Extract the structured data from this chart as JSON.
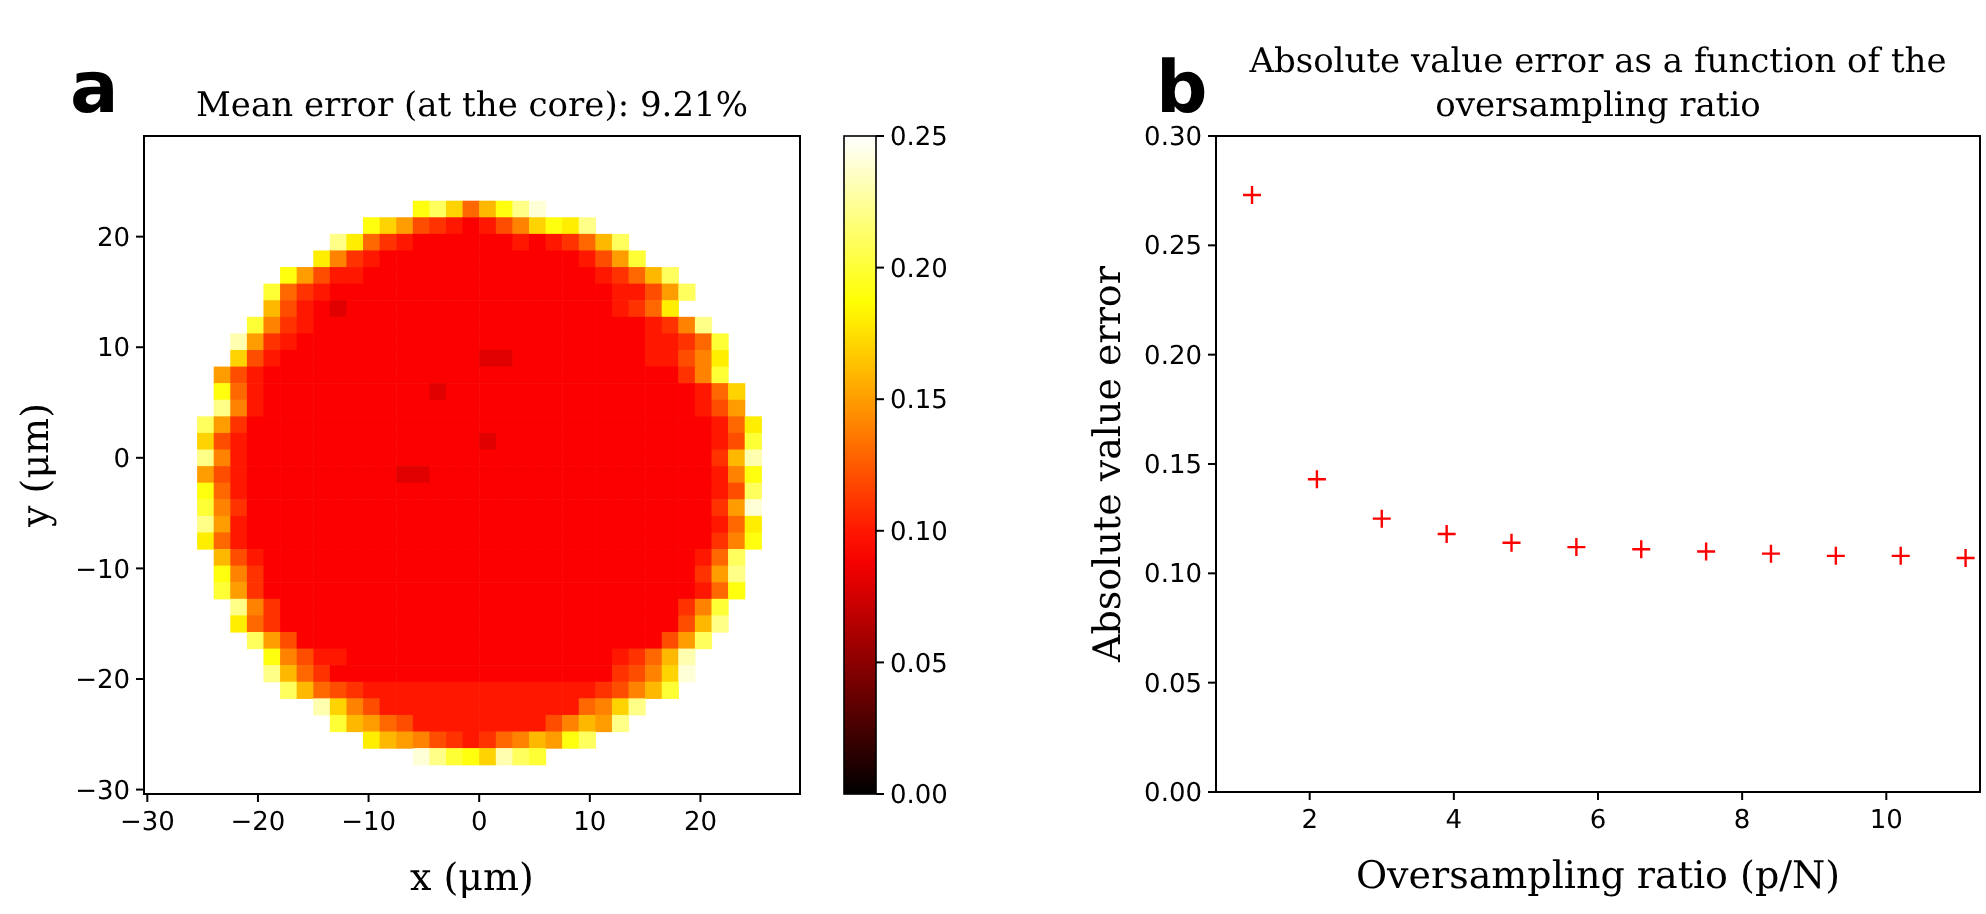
{
  "chart_data": [
    {
      "type": "heatmap",
      "title": "Mean error (at the core): 9.21%",
      "xlabel": "x (μm)",
      "ylabel": "y (μm)",
      "annotations": [
        "a"
      ],
      "xlim": [
        -30.3,
        29.0
      ],
      "ylim": [
        -30.4,
        29.1
      ],
      "xticks": [
        {
          "value": -30,
          "label": "−30"
        },
        {
          "value": -20,
          "label": "−20"
        },
        {
          "value": -10,
          "label": "−10"
        },
        0,
        10,
        20
      ],
      "yticks": [
        {
          "value": -30,
          "label": "−30"
        },
        {
          "value": -20,
          "label": "−20"
        },
        {
          "value": -10,
          "label": "−10"
        },
        0,
        10,
        20
      ],
      "clim": [
        0,
        0.25
      ],
      "cticks": [
        {
          "value": 0,
          "label": "0.00"
        },
        0.05,
        {
          "value": 0.1,
          "label": "0.10"
        },
        0.15,
        {
          "value": 0.2,
          "label": "0.20"
        },
        0.25
      ],
      "x": [
        -24.75,
        -23.25,
        -21.75,
        -20.25,
        -18.75,
        -17.25,
        -15.75,
        -14.25,
        -12.75,
        -11.25,
        -9.75,
        -8.25,
        -6.75,
        -5.25,
        -3.75,
        -2.25,
        -0.75,
        0.75,
        2.25,
        3.75,
        5.25,
        6.75,
        8.25,
        9.75,
        11.25,
        12.75,
        14.25,
        15.75,
        17.25,
        18.75,
        20.25,
        21.75,
        23.25,
        24.75
      ],
      "y": [
        22.5,
        21,
        19.5,
        18,
        16.5,
        15,
        13.5,
        12,
        10.5,
        9,
        7.5,
        6,
        4.5,
        3,
        1.5,
        0,
        -1.5,
        -3,
        -4.5,
        -6,
        -7.5,
        -9,
        -10.5,
        -12,
        -13.5,
        -15,
        -16.5,
        -18,
        -19.5,
        -21,
        -22.5,
        -24,
        -25.5,
        -27
      ],
      "cells": [
        [
          null,
          null,
          null,
          null,
          null,
          null,
          null,
          null,
          null,
          null,
          null,
          null,
          null,
          0.19,
          0.21,
          0.17,
          0.13,
          0.16,
          0.19,
          0.22,
          0.24,
          null,
          null,
          null,
          null,
          null,
          null,
          null,
          null,
          null,
          null,
          null,
          null,
          null
        ],
        [
          null,
          null,
          null,
          null,
          null,
          null,
          null,
          null,
          null,
          null,
          0.19,
          0.17,
          0.15,
          0.12,
          0.11,
          0.1,
          0.09,
          0.1,
          0.12,
          0.14,
          0.17,
          0.19,
          0.18,
          0.22,
          null,
          null,
          null,
          null,
          null,
          null,
          null,
          null,
          null,
          null
        ],
        [
          null,
          null,
          null,
          null,
          null,
          null,
          null,
          null,
          0.22,
          0.18,
          0.13,
          0.11,
          0.1,
          0.09,
          0.09,
          0.09,
          0.09,
          0.09,
          0.09,
          0.1,
          0.09,
          0.1,
          0.11,
          0.13,
          0.16,
          0.21,
          null,
          null,
          null,
          null,
          null,
          null,
          null,
          null
        ],
        [
          null,
          null,
          null,
          null,
          null,
          null,
          null,
          0.18,
          0.14,
          0.11,
          0.1,
          0.09,
          0.09,
          0.09,
          0.09,
          0.09,
          0.09,
          0.09,
          0.09,
          0.09,
          0.09,
          0.09,
          0.09,
          0.1,
          0.12,
          0.15,
          0.2,
          null,
          null,
          null,
          null,
          null,
          null,
          null
        ],
        [
          null,
          null,
          null,
          null,
          null,
          0.19,
          0.15,
          0.12,
          0.1,
          0.1,
          0.09,
          0.09,
          0.09,
          0.09,
          0.09,
          0.09,
          0.09,
          0.09,
          0.09,
          0.09,
          0.09,
          0.09,
          0.09,
          0.09,
          0.1,
          0.11,
          0.13,
          0.16,
          0.21,
          null,
          null,
          null,
          null,
          null
        ],
        [
          null,
          null,
          null,
          null,
          0.2,
          0.13,
          0.11,
          0.1,
          0.09,
          0.09,
          0.09,
          0.09,
          0.09,
          0.09,
          0.09,
          0.09,
          0.09,
          0.09,
          0.09,
          0.09,
          0.09,
          0.09,
          0.09,
          0.09,
          0.09,
          0.1,
          0.1,
          0.12,
          0.15,
          0.21,
          null,
          null,
          null,
          null
        ],
        [
          null,
          null,
          null,
          null,
          0.16,
          0.12,
          0.1,
          0.09,
          0.08,
          0.09,
          0.09,
          0.09,
          0.09,
          0.09,
          0.09,
          0.09,
          0.09,
          0.09,
          0.09,
          0.09,
          0.09,
          0.09,
          0.09,
          0.09,
          0.09,
          0.1,
          0.11,
          0.13,
          0.18,
          null,
          null,
          null,
          null,
          null
        ],
        [
          null,
          null,
          null,
          0.2,
          0.14,
          0.11,
          0.1,
          0.09,
          0.09,
          0.09,
          0.09,
          0.09,
          0.09,
          0.09,
          0.09,
          0.09,
          0.09,
          0.09,
          0.09,
          0.09,
          0.09,
          0.09,
          0.09,
          0.09,
          0.09,
          0.09,
          0.09,
          0.1,
          0.11,
          0.14,
          0.22,
          null,
          null,
          null
        ],
        [
          null,
          null,
          0.23,
          0.15,
          0.11,
          0.1,
          0.09,
          0.09,
          0.09,
          0.09,
          0.09,
          0.09,
          0.09,
          0.09,
          0.09,
          0.09,
          0.09,
          0.09,
          0.09,
          0.09,
          0.09,
          0.09,
          0.09,
          0.09,
          0.09,
          0.09,
          0.09,
          0.1,
          0.1,
          0.11,
          0.13,
          0.2,
          null,
          null
        ],
        [
          null,
          null,
          0.17,
          0.12,
          0.1,
          0.09,
          0.09,
          0.09,
          0.09,
          0.09,
          0.09,
          0.09,
          0.09,
          0.09,
          0.09,
          0.09,
          0.09,
          0.08,
          0.08,
          0.09,
          0.09,
          0.09,
          0.09,
          0.09,
          0.09,
          0.09,
          0.09,
          0.1,
          0.1,
          0.12,
          0.14,
          0.18,
          null,
          null
        ],
        [
          null,
          0.15,
          0.12,
          0.1,
          0.09,
          0.09,
          0.09,
          0.09,
          0.09,
          0.09,
          0.09,
          0.09,
          0.09,
          0.09,
          0.09,
          0.09,
          0.09,
          0.09,
          0.09,
          0.09,
          0.09,
          0.09,
          0.09,
          0.09,
          0.09,
          0.09,
          0.09,
          0.09,
          0.09,
          0.11,
          0.14,
          0.2,
          null,
          null
        ],
        [
          null,
          0.19,
          0.13,
          0.1,
          0.09,
          0.09,
          0.09,
          0.09,
          0.09,
          0.09,
          0.09,
          0.09,
          0.09,
          0.09,
          0.08,
          0.09,
          0.09,
          0.09,
          0.09,
          0.09,
          0.09,
          0.09,
          0.09,
          0.09,
          0.09,
          0.09,
          0.09,
          0.09,
          0.09,
          0.09,
          0.1,
          0.13,
          0.17,
          null
        ],
        [
          null,
          0.22,
          0.14,
          0.1,
          0.09,
          0.09,
          0.09,
          0.09,
          0.09,
          0.09,
          0.09,
          0.09,
          0.09,
          0.09,
          0.09,
          0.09,
          0.09,
          0.09,
          0.09,
          0.09,
          0.09,
          0.09,
          0.09,
          0.09,
          0.09,
          0.09,
          0.09,
          0.09,
          0.09,
          0.09,
          0.1,
          0.12,
          0.15,
          null
        ],
        [
          0.21,
          0.15,
          0.11,
          0.09,
          0.09,
          0.09,
          0.09,
          0.09,
          0.09,
          0.09,
          0.09,
          0.09,
          0.09,
          0.09,
          0.09,
          0.09,
          0.09,
          0.09,
          0.09,
          0.09,
          0.09,
          0.09,
          0.09,
          0.09,
          0.09,
          0.09,
          0.09,
          0.09,
          0.09,
          0.09,
          0.09,
          0.1,
          0.13,
          0.18
        ],
        [
          0.17,
          0.12,
          0.1,
          0.09,
          0.09,
          0.09,
          0.09,
          0.09,
          0.09,
          0.09,
          0.09,
          0.09,
          0.09,
          0.09,
          0.09,
          0.09,
          0.09,
          0.08,
          0.09,
          0.09,
          0.09,
          0.09,
          0.09,
          0.09,
          0.09,
          0.09,
          0.09,
          0.09,
          0.09,
          0.09,
          0.09,
          0.1,
          0.12,
          0.2
        ],
        [
          0.22,
          0.14,
          0.1,
          0.09,
          0.09,
          0.09,
          0.09,
          0.09,
          0.09,
          0.09,
          0.09,
          0.09,
          0.09,
          0.09,
          0.09,
          0.09,
          0.09,
          0.09,
          0.09,
          0.09,
          0.09,
          0.09,
          0.09,
          0.09,
          0.09,
          0.09,
          0.09,
          0.09,
          0.09,
          0.09,
          0.09,
          0.11,
          0.16,
          0.23
        ],
        [
          0.15,
          0.12,
          0.1,
          0.09,
          0.09,
          0.09,
          0.09,
          0.09,
          0.09,
          0.09,
          0.09,
          0.09,
          0.08,
          0.08,
          0.09,
          0.09,
          0.09,
          0.09,
          0.09,
          0.09,
          0.09,
          0.09,
          0.09,
          0.09,
          0.09,
          0.09,
          0.09,
          0.09,
          0.09,
          0.09,
          0.09,
          0.1,
          0.14,
          0.19
        ],
        [
          0.19,
          0.13,
          0.1,
          0.09,
          0.09,
          0.09,
          0.09,
          0.09,
          0.09,
          0.09,
          0.09,
          0.09,
          0.09,
          0.09,
          0.09,
          0.09,
          0.09,
          0.09,
          0.09,
          0.09,
          0.09,
          0.09,
          0.09,
          0.09,
          0.09,
          0.09,
          0.09,
          0.09,
          0.09,
          0.09,
          0.09,
          0.1,
          0.12,
          0.21
        ],
        [
          0.2,
          0.14,
          0.11,
          0.09,
          0.09,
          0.09,
          0.09,
          0.09,
          0.09,
          0.09,
          0.09,
          0.09,
          0.09,
          0.09,
          0.09,
          0.09,
          0.09,
          0.09,
          0.09,
          0.09,
          0.09,
          0.09,
          0.09,
          0.09,
          0.09,
          0.09,
          0.09,
          0.09,
          0.09,
          0.09,
          0.09,
          0.11,
          0.15,
          0.24
        ],
        [
          0.22,
          0.15,
          0.1,
          0.09,
          0.09,
          0.09,
          0.09,
          0.09,
          0.09,
          0.09,
          0.09,
          0.09,
          0.09,
          0.09,
          0.09,
          0.09,
          0.09,
          0.09,
          0.09,
          0.09,
          0.09,
          0.09,
          0.09,
          0.09,
          0.09,
          0.09,
          0.09,
          0.09,
          0.09,
          0.09,
          0.09,
          0.1,
          0.13,
          0.18
        ],
        [
          0.18,
          0.13,
          0.1,
          0.09,
          0.09,
          0.09,
          0.09,
          0.09,
          0.09,
          0.09,
          0.09,
          0.09,
          0.09,
          0.09,
          0.09,
          0.09,
          0.09,
          0.09,
          0.09,
          0.09,
          0.09,
          0.09,
          0.09,
          0.09,
          0.09,
          0.09,
          0.09,
          0.09,
          0.09,
          0.09,
          0.09,
          0.11,
          0.14,
          0.19
        ],
        [
          null,
          0.16,
          0.12,
          0.1,
          0.09,
          0.09,
          0.09,
          0.09,
          0.09,
          0.09,
          0.09,
          0.09,
          0.09,
          0.09,
          0.09,
          0.09,
          0.09,
          0.09,
          0.09,
          0.09,
          0.09,
          0.09,
          0.09,
          0.09,
          0.09,
          0.09,
          0.09,
          0.09,
          0.09,
          0.09,
          0.1,
          0.13,
          0.21,
          null
        ],
        [
          null,
          0.19,
          0.14,
          0.11,
          0.09,
          0.09,
          0.09,
          0.09,
          0.09,
          0.09,
          0.09,
          0.09,
          0.09,
          0.09,
          0.09,
          0.09,
          0.09,
          0.09,
          0.09,
          0.09,
          0.09,
          0.09,
          0.09,
          0.09,
          0.09,
          0.09,
          0.09,
          0.09,
          0.09,
          0.09,
          0.11,
          0.15,
          0.22,
          null
        ],
        [
          null,
          0.2,
          0.15,
          0.11,
          0.09,
          0.09,
          0.09,
          0.09,
          0.09,
          0.09,
          0.09,
          0.09,
          0.09,
          0.09,
          0.09,
          0.09,
          0.09,
          0.09,
          0.09,
          0.09,
          0.09,
          0.09,
          0.09,
          0.09,
          0.09,
          0.09,
          0.09,
          0.09,
          0.09,
          0.09,
          0.1,
          0.13,
          0.19,
          null
        ],
        [
          null,
          null,
          0.22,
          0.14,
          0.11,
          0.09,
          0.09,
          0.09,
          0.09,
          0.09,
          0.09,
          0.09,
          0.09,
          0.09,
          0.09,
          0.09,
          0.09,
          0.09,
          0.09,
          0.09,
          0.09,
          0.09,
          0.09,
          0.09,
          0.09,
          0.09,
          0.09,
          0.09,
          0.09,
          0.11,
          0.14,
          0.2,
          null,
          null
        ],
        [
          null,
          null,
          0.18,
          0.13,
          0.11,
          0.09,
          0.09,
          0.09,
          0.09,
          0.09,
          0.09,
          0.09,
          0.09,
          0.09,
          0.09,
          0.09,
          0.09,
          0.09,
          0.09,
          0.09,
          0.09,
          0.09,
          0.09,
          0.09,
          0.09,
          0.09,
          0.09,
          0.09,
          0.09,
          0.12,
          0.16,
          0.22,
          null,
          null
        ],
        [
          null,
          null,
          null,
          0.21,
          0.15,
          0.12,
          0.09,
          0.09,
          0.09,
          0.09,
          0.09,
          0.09,
          0.09,
          0.09,
          0.09,
          0.09,
          0.09,
          0.09,
          0.09,
          0.09,
          0.09,
          0.09,
          0.09,
          0.09,
          0.09,
          0.09,
          0.09,
          0.09,
          0.12,
          0.15,
          0.21,
          null,
          null,
          null
        ],
        [
          null,
          null,
          null,
          null,
          0.19,
          0.14,
          0.12,
          0.1,
          0.1,
          0.09,
          0.09,
          0.09,
          0.09,
          0.09,
          0.09,
          0.09,
          0.09,
          0.09,
          0.09,
          0.09,
          0.09,
          0.09,
          0.09,
          0.09,
          0.09,
          0.1,
          0.11,
          0.13,
          0.16,
          0.23,
          null,
          null,
          null,
          null
        ],
        [
          null,
          null,
          null,
          null,
          0.22,
          0.16,
          0.13,
          0.11,
          0.09,
          0.09,
          0.09,
          0.09,
          0.09,
          0.09,
          0.09,
          0.09,
          0.09,
          0.09,
          0.09,
          0.09,
          0.09,
          0.09,
          0.09,
          0.09,
          0.09,
          0.11,
          0.12,
          0.14,
          0.17,
          0.24,
          null,
          null,
          null,
          null
        ],
        [
          null,
          null,
          null,
          null,
          null,
          0.21,
          0.16,
          0.13,
          0.12,
          0.11,
          0.1,
          0.1,
          0.1,
          0.1,
          0.1,
          0.1,
          0.1,
          0.1,
          0.1,
          0.1,
          0.1,
          0.1,
          0.1,
          0.1,
          0.11,
          0.12,
          0.14,
          0.16,
          0.2,
          null,
          null,
          null,
          null,
          null
        ],
        [
          null,
          null,
          null,
          null,
          null,
          null,
          null,
          0.23,
          0.17,
          0.14,
          0.12,
          0.1,
          0.1,
          0.1,
          0.1,
          0.1,
          0.1,
          0.1,
          0.1,
          0.1,
          0.1,
          0.1,
          0.1,
          0.13,
          0.14,
          0.17,
          0.22,
          null,
          null,
          null,
          null,
          null,
          null,
          null
        ],
        [
          null,
          null,
          null,
          null,
          null,
          null,
          null,
          null,
          0.2,
          0.16,
          0.15,
          0.13,
          0.12,
          0.1,
          0.1,
          0.1,
          0.1,
          0.1,
          0.1,
          0.1,
          0.1,
          0.12,
          0.14,
          0.16,
          0.15,
          0.22,
          null,
          null,
          null,
          null,
          null,
          null,
          null,
          null
        ],
        [
          null,
          null,
          null,
          null,
          null,
          null,
          null,
          null,
          null,
          null,
          0.18,
          0.16,
          0.15,
          0.14,
          0.12,
          0.11,
          0.1,
          0.11,
          0.13,
          0.14,
          0.16,
          0.15,
          0.19,
          0.21,
          null,
          null,
          null,
          null,
          null,
          null,
          null,
          null,
          null,
          null
        ],
        [
          null,
          null,
          null,
          null,
          null,
          null,
          null,
          null,
          null,
          null,
          null,
          null,
          null,
          0.24,
          0.22,
          0.2,
          0.19,
          0.17,
          0.23,
          0.21,
          0.2,
          null,
          null,
          null,
          null,
          null,
          null,
          null,
          null,
          null,
          null,
          null,
          null,
          null
        ]
      ]
    },
    {
      "type": "scatter",
      "title": "Absolute value error as a function of the oversampling ratio",
      "xlabel": "Oversampling ratio (p/N)",
      "ylabel": "Absolute value error",
      "annotations": [
        "b"
      ],
      "x": [
        1.2,
        2.1,
        3.0,
        3.9,
        4.8,
        5.7,
        6.6,
        7.5,
        8.4,
        9.3,
        10.2,
        11.1
      ],
      "series": [
        {
          "color": "#ff0000",
          "values": [
            0.273,
            0.143,
            0.125,
            0.118,
            0.114,
            0.112,
            0.111,
            0.11,
            0.109,
            0.108,
            0.108,
            0.107
          ]
        }
      ],
      "marker": "cross",
      "xlim": [
        0.7,
        11.3
      ],
      "ylim": [
        0,
        0.3
      ],
      "xticks": [
        2,
        4,
        6,
        8,
        10
      ],
      "yticks": [
        {
          "value": 0,
          "label": "0.00"
        },
        0.05,
        {
          "value": 0.1,
          "label": "0.10"
        },
        0.15,
        {
          "value": 0.2,
          "label": "0.20"
        },
        0.25,
        {
          "value": 0.3,
          "label": "0.30"
        }
      ]
    }
  ]
}
